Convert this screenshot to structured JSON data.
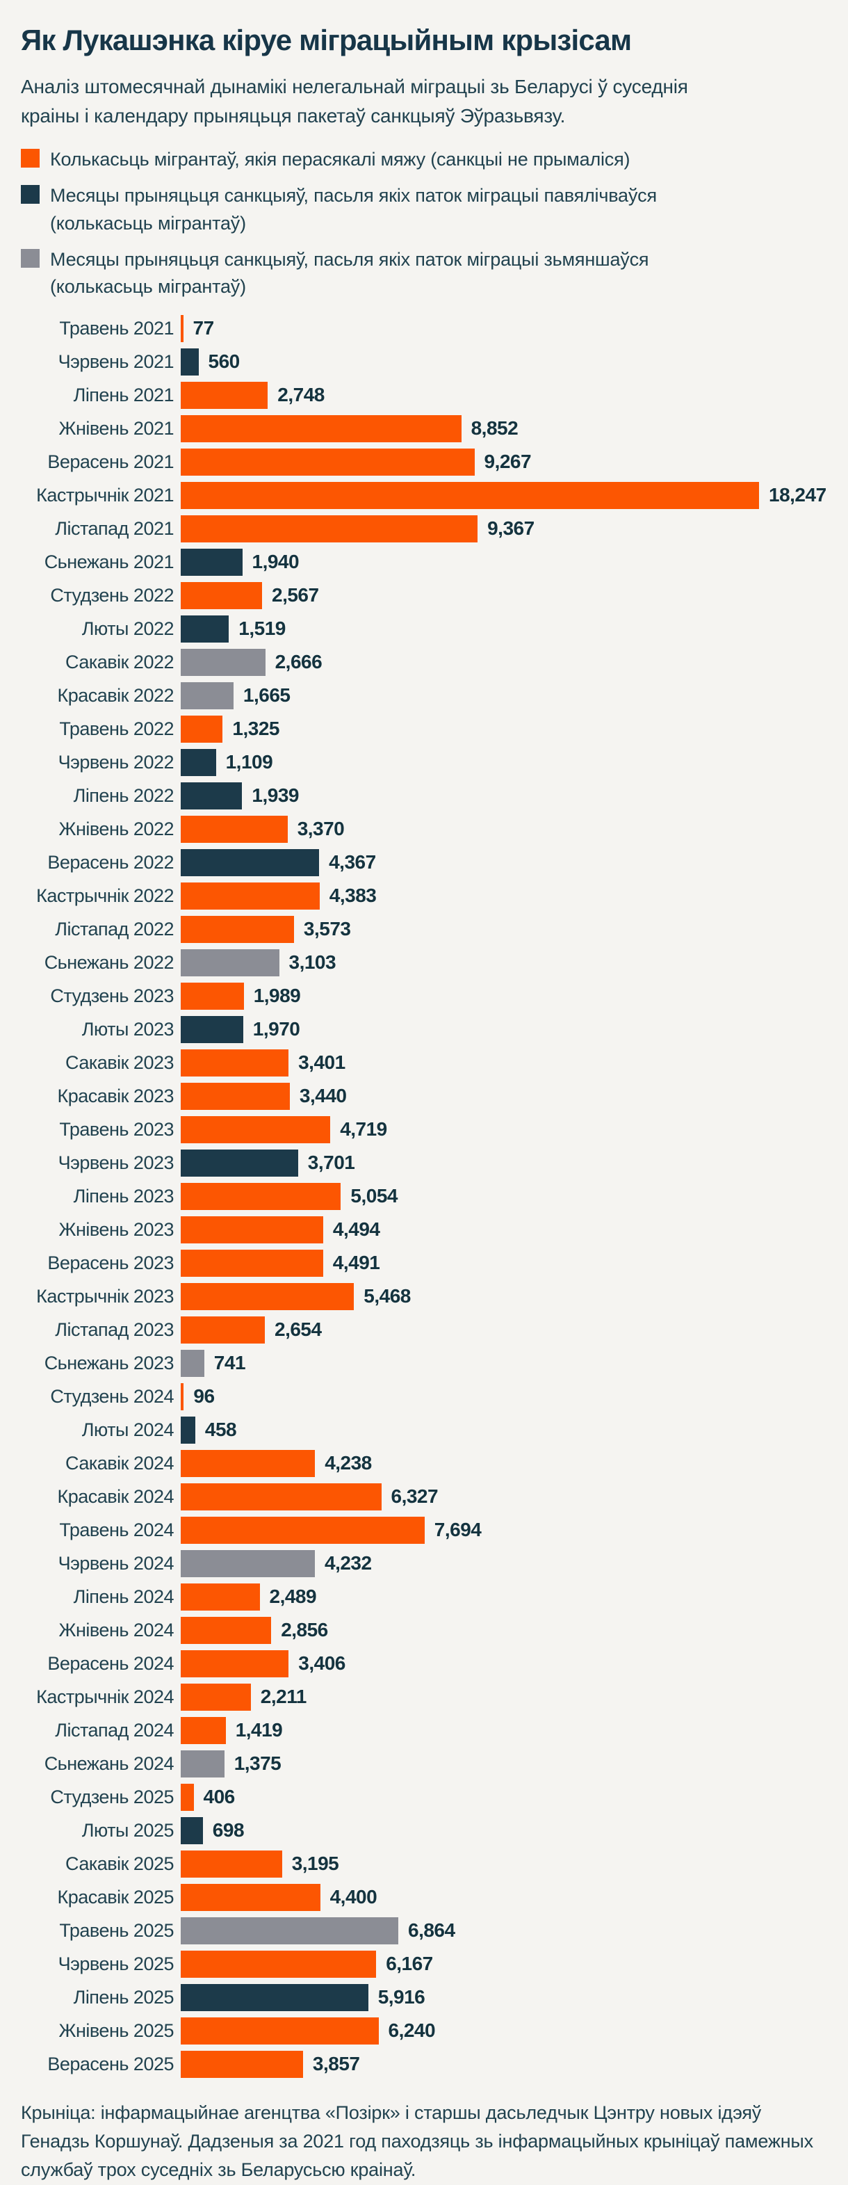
{
  "header": {
    "title": "Як Лукашэнка кіруе міграцыйным крызісам",
    "subtitle": "Аналіз штомесячнай дынамікі нелегальнай міграцыі зь Беларусі ў суседнія краіны і календару прыняцьця пакетаў санкцыяў Эўразьвязу."
  },
  "footer": {
    "source": "Крыніца: інфармацыйнае агенцтва «Позірк» і старшы дасьледчык Цэнтру новых ідэяў Генадзь Коршунаў. Дадзеныя за 2021 год паходзяць зь інфармацыйных крыніцаў памежных службаў трох суседніх зь Беларусьсю краінаў."
  },
  "chart_data": {
    "type": "bar",
    "orientation": "horizontal",
    "title": "Як Лукашэнка кіруе міграцыйным крызісам",
    "xlabel": "",
    "ylabel": "",
    "max_value": 18247,
    "grid": false,
    "legend_position": "top",
    "colors": {
      "no_sanctions": "#fc5602",
      "sanctions_increase": "#1c3a4a",
      "sanctions_decrease": "#8b8d95"
    },
    "legend": [
      {
        "type": "no_sanctions",
        "label": "Колькасьць мігрантаў, якія перасякалі мяжу (санкцыі не прымаліся)"
      },
      {
        "type": "sanctions_increase",
        "label": "Месяцы прыняцьця санкцыяў, пасьля якіх паток міграцыі павялічваўся (колькасьць мігрантаў)"
      },
      {
        "type": "sanctions_decrease",
        "label": "Месяцы прыняцьця санкцыяў, пасьля якіх паток міграцыі зьмяншаўся (колькасьць мігрантаў)"
      }
    ],
    "rows": [
      {
        "label": "Травень 2021",
        "value": 77,
        "display": "77",
        "type": "no_sanctions"
      },
      {
        "label": "Чэрвень 2021",
        "value": 560,
        "display": "560",
        "type": "sanctions_increase"
      },
      {
        "label": "Ліпень 2021",
        "value": 2748,
        "display": "2,748",
        "type": "no_sanctions"
      },
      {
        "label": "Жнівень 2021",
        "value": 8852,
        "display": "8,852",
        "type": "no_sanctions"
      },
      {
        "label": "Верасень 2021",
        "value": 9267,
        "display": "9,267",
        "type": "no_sanctions"
      },
      {
        "label": "Кастрычнік 2021",
        "value": 18247,
        "display": "18,247",
        "type": "no_sanctions"
      },
      {
        "label": "Лістапад 2021",
        "value": 9367,
        "display": "9,367",
        "type": "no_sanctions"
      },
      {
        "label": "Сьнежань 2021",
        "value": 1940,
        "display": "1,940",
        "type": "sanctions_increase"
      },
      {
        "label": "Студзень 2022",
        "value": 2567,
        "display": "2,567",
        "type": "no_sanctions"
      },
      {
        "label": "Люты 2022",
        "value": 1519,
        "display": "1,519",
        "type": "sanctions_increase"
      },
      {
        "label": "Сакавік 2022",
        "value": 2666,
        "display": "2,666",
        "type": "sanctions_decrease"
      },
      {
        "label": "Красавік 2022",
        "value": 1665,
        "display": "1,665",
        "type": "sanctions_decrease"
      },
      {
        "label": "Травень 2022",
        "value": 1325,
        "display": "1,325",
        "type": "no_sanctions"
      },
      {
        "label": "Чэрвень 2022",
        "value": 1109,
        "display": "1,109",
        "type": "sanctions_increase"
      },
      {
        "label": "Ліпень 2022",
        "value": 1939,
        "display": "1,939",
        "type": "sanctions_increase"
      },
      {
        "label": "Жнівень 2022",
        "value": 3370,
        "display": "3,370",
        "type": "no_sanctions"
      },
      {
        "label": "Верасень 2022",
        "value": 4367,
        "display": "4,367",
        "type": "sanctions_increase"
      },
      {
        "label": "Кастрычнік 2022",
        "value": 4383,
        "display": "4,383",
        "type": "no_sanctions"
      },
      {
        "label": "Лістапад 2022",
        "value": 3573,
        "display": "3,573",
        "type": "no_sanctions"
      },
      {
        "label": "Сьнежань 2022",
        "value": 3103,
        "display": "3,103",
        "type": "sanctions_decrease"
      },
      {
        "label": "Студзень 2023",
        "value": 1989,
        "display": "1,989",
        "type": "no_sanctions"
      },
      {
        "label": "Люты 2023",
        "value": 1970,
        "display": "1,970",
        "type": "sanctions_increase"
      },
      {
        "label": "Сакавік 2023",
        "value": 3401,
        "display": "3,401",
        "type": "no_sanctions"
      },
      {
        "label": "Красавік 2023",
        "value": 3440,
        "display": "3,440",
        "type": "no_sanctions"
      },
      {
        "label": "Травень 2023",
        "value": 4719,
        "display": "4,719",
        "type": "no_sanctions"
      },
      {
        "label": "Чэрвень 2023",
        "value": 3701,
        "display": "3,701",
        "type": "sanctions_increase"
      },
      {
        "label": "Ліпень 2023",
        "value": 5054,
        "display": "5,054",
        "type": "no_sanctions"
      },
      {
        "label": "Жнівень 2023",
        "value": 4494,
        "display": "4,494",
        "type": "no_sanctions"
      },
      {
        "label": "Верасень 2023",
        "value": 4491,
        "display": "4,491",
        "type": "no_sanctions"
      },
      {
        "label": "Кастрычнік 2023",
        "value": 5468,
        "display": "5,468",
        "type": "no_sanctions"
      },
      {
        "label": "Лістапад 2023",
        "value": 2654,
        "display": "2,654",
        "type": "no_sanctions"
      },
      {
        "label": "Сьнежань 2023",
        "value": 741,
        "display": "741",
        "type": "sanctions_decrease"
      },
      {
        "label": "Студзень 2024",
        "value": 96,
        "display": "96",
        "type": "no_sanctions"
      },
      {
        "label": "Люты 2024",
        "value": 458,
        "display": "458",
        "type": "sanctions_increase"
      },
      {
        "label": "Сакавік 2024",
        "value": 4238,
        "display": "4,238",
        "type": "no_sanctions"
      },
      {
        "label": "Красавік 2024",
        "value": 6327,
        "display": "6,327",
        "type": "no_sanctions"
      },
      {
        "label": "Травень 2024",
        "value": 7694,
        "display": "7,694",
        "type": "no_sanctions"
      },
      {
        "label": "Чэрвень 2024",
        "value": 4232,
        "display": "4,232",
        "type": "sanctions_decrease"
      },
      {
        "label": "Ліпень 2024",
        "value": 2489,
        "display": "2,489",
        "type": "no_sanctions"
      },
      {
        "label": "Жнівень 2024",
        "value": 2856,
        "display": "2,856",
        "type": "no_sanctions"
      },
      {
        "label": "Верасень 2024",
        "value": 3406,
        "display": "3,406",
        "type": "no_sanctions"
      },
      {
        "label": "Кастрычнік 2024",
        "value": 2211,
        "display": "2,211",
        "type": "no_sanctions"
      },
      {
        "label": "Лістапад 2024",
        "value": 1419,
        "display": "1,419",
        "type": "no_sanctions"
      },
      {
        "label": "Сьнежань 2024",
        "value": 1375,
        "display": "1,375",
        "type": "sanctions_decrease"
      },
      {
        "label": "Студзень 2025",
        "value": 406,
        "display": "406",
        "type": "no_sanctions"
      },
      {
        "label": "Люты 2025",
        "value": 698,
        "display": "698",
        "type": "sanctions_increase"
      },
      {
        "label": "Сакавік 2025",
        "value": 3195,
        "display": "3,195",
        "type": "no_sanctions"
      },
      {
        "label": "Красавік 2025",
        "value": 4400,
        "display": "4,400",
        "type": "no_sanctions"
      },
      {
        "label": "Травень 2025",
        "value": 6864,
        "display": "6,864",
        "type": "sanctions_decrease"
      },
      {
        "label": "Чэрвень 2025",
        "value": 6167,
        "display": "6,167",
        "type": "no_sanctions"
      },
      {
        "label": "Ліпень 2025",
        "value": 5916,
        "display": "5,916",
        "type": "sanctions_increase"
      },
      {
        "label": "Жнівень 2025",
        "value": 6240,
        "display": "6,240",
        "type": "no_sanctions"
      },
      {
        "label": "Верасень 2025",
        "value": 3857,
        "display": "3,857",
        "type": "no_sanctions"
      }
    ]
  }
}
